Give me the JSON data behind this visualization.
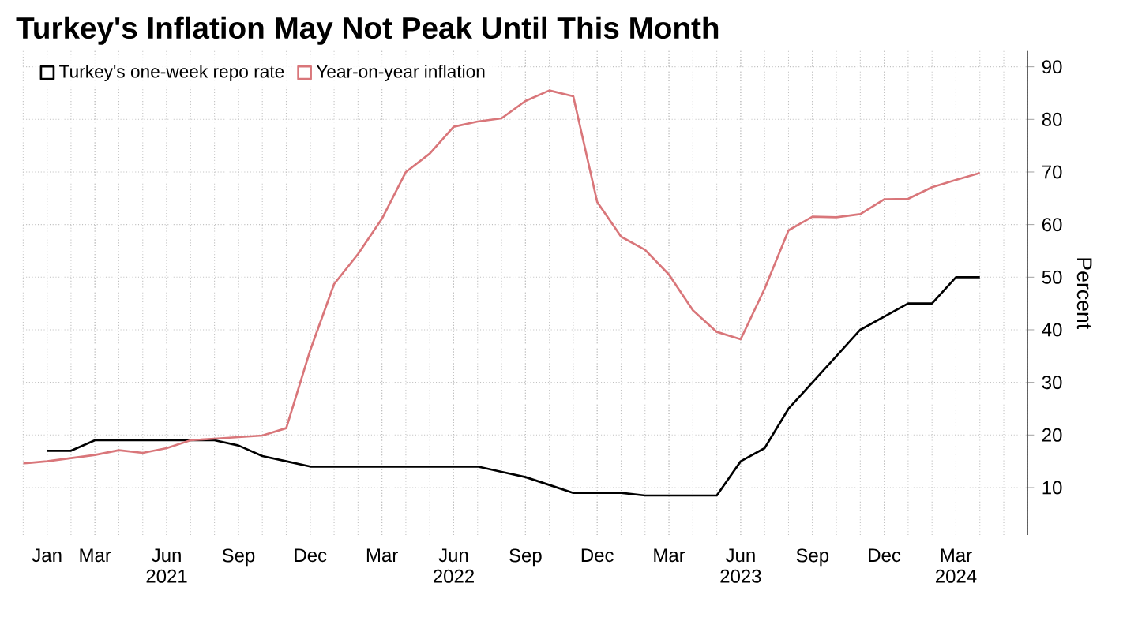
{
  "chart_data": {
    "type": "line",
    "title": "Turkey's Inflation May Not Peak Until This Month",
    "ylabel": "Percent",
    "legend": "top left",
    "grid": true,
    "xlim": [
      "2020-12",
      "2024-06"
    ],
    "xticks": [
      {
        "value": "2021-01",
        "label": "Jan"
      },
      {
        "value": "2021-03",
        "label": "Mar"
      },
      {
        "value": "2021-06",
        "label": "Jun 2021"
      },
      {
        "value": "2021-09",
        "label": "Sep"
      },
      {
        "value": "2021-12",
        "label": "Dec"
      },
      {
        "value": "2022-03",
        "label": "Mar"
      },
      {
        "value": "2022-06",
        "label": "Jun 2022"
      },
      {
        "value": "2022-09",
        "label": "Sep"
      },
      {
        "value": "2022-12",
        "label": "Dec"
      },
      {
        "value": "2023-03",
        "label": "Mar"
      },
      {
        "value": "2023-06",
        "label": "Jun 2023"
      },
      {
        "value": "2023-09",
        "label": "Sep"
      },
      {
        "value": "2023-12",
        "label": "Dec"
      },
      {
        "value": "2024-03",
        "label": "Mar 2024"
      }
    ],
    "ylim": [
      1,
      93
    ],
    "yticks": [
      10,
      20,
      30,
      40,
      50,
      60,
      70,
      80,
      90
    ],
    "series": [
      {
        "name": "Turkey's one-week repo rate",
        "color": "#000000",
        "x": [
          "2021-01",
          "2021-02",
          "2021-03",
          "2021-04",
          "2021-05",
          "2021-06",
          "2021-07",
          "2021-08",
          "2021-09",
          "2021-10",
          "2021-11",
          "2021-12",
          "2022-01",
          "2022-02",
          "2022-03",
          "2022-04",
          "2022-05",
          "2022-06",
          "2022-07",
          "2022-08",
          "2022-09",
          "2022-10",
          "2022-11",
          "2022-12",
          "2023-01",
          "2023-02",
          "2023-03",
          "2023-04",
          "2023-05",
          "2023-06",
          "2023-07",
          "2023-08",
          "2023-09",
          "2023-10",
          "2023-11",
          "2023-12",
          "2024-01",
          "2024-02",
          "2024-03",
          "2024-04"
        ],
        "values": [
          17,
          17,
          19,
          19,
          19,
          19,
          19,
          19,
          18,
          16,
          15,
          14,
          14,
          14,
          14,
          14,
          14,
          14,
          14,
          13,
          12,
          10.5,
          9,
          9,
          9,
          8.5,
          8.5,
          8.5,
          8.5,
          15,
          17.5,
          25,
          30,
          35,
          40,
          42.5,
          45,
          45,
          50,
          50
        ]
      },
      {
        "name": "Year-on-year inflation",
        "color": "#d9767a",
        "x": [
          "2020-12",
          "2021-01",
          "2021-02",
          "2021-03",
          "2021-04",
          "2021-05",
          "2021-06",
          "2021-07",
          "2021-08",
          "2021-09",
          "2021-10",
          "2021-11",
          "2021-12",
          "2022-01",
          "2022-02",
          "2022-03",
          "2022-04",
          "2022-05",
          "2022-06",
          "2022-07",
          "2022-08",
          "2022-09",
          "2022-10",
          "2022-11",
          "2022-12",
          "2023-01",
          "2023-02",
          "2023-03",
          "2023-04",
          "2023-05",
          "2023-06",
          "2023-07",
          "2023-08",
          "2023-09",
          "2023-10",
          "2023-11",
          "2023-12",
          "2024-01",
          "2024-02",
          "2024-03",
          "2024-04"
        ],
        "values": [
          14.6,
          15,
          15.6,
          16.2,
          17.1,
          16.6,
          17.5,
          19,
          19.3,
          19.6,
          19.9,
          21.3,
          36.1,
          48.7,
          54.4,
          61.1,
          70,
          73.5,
          78.6,
          79.6,
          80.2,
          83.5,
          85.5,
          84.4,
          64.3,
          57.7,
          55.2,
          50.5,
          43.7,
          39.6,
          38.2,
          47.8,
          58.9,
          61.5,
          61.4,
          62,
          64.8,
          64.9,
          67.1,
          68.5,
          69.8
        ]
      }
    ]
  }
}
